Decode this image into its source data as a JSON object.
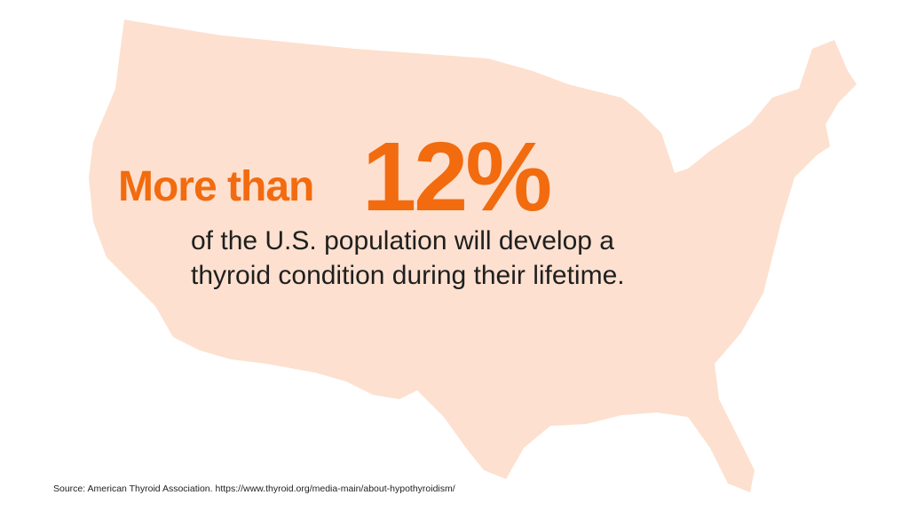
{
  "headline": {
    "lead": "More than",
    "stat": "12%"
  },
  "body": {
    "lines": [
      "of the U.S. population will develop a",
      "thyroid condition during their lifetime."
    ]
  },
  "footer": {
    "source": "Source: American Thyroid Association. https://www.thyroid.org/media-main/about-hypothyroidism/"
  }
}
